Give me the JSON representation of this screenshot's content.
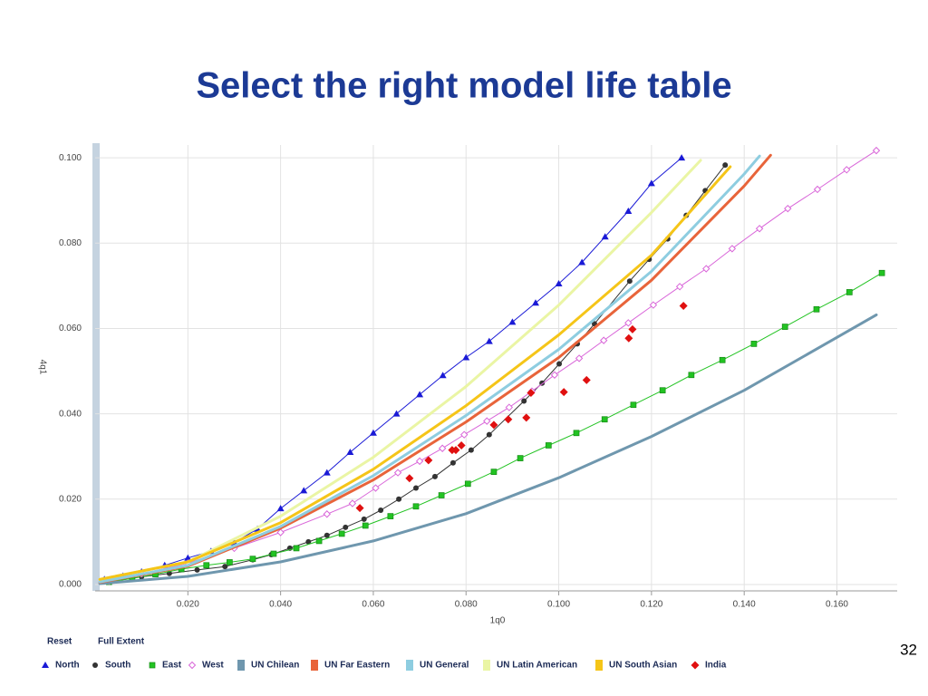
{
  "chart_data": {
    "type": "line",
    "title": "Select the right model life table",
    "x_label": "1q0",
    "y_label": "4q1",
    "buttons": [
      "Reset",
      "Full Extent"
    ],
    "page_number": 32,
    "xlim": [
      0,
      0.173
    ],
    "ylim": [
      -0.0015,
      0.103
    ],
    "xticks": [
      {
        "value": 0.02,
        "label": "0.020"
      },
      {
        "value": 0.04,
        "label": "0.040"
      },
      {
        "value": 0.06,
        "label": "0.060"
      },
      {
        "value": 0.08,
        "label": "0.080"
      },
      {
        "value": 0.1,
        "label": "0.100"
      },
      {
        "value": 0.12,
        "label": "0.120"
      },
      {
        "value": 0.14,
        "label": "0.140"
      },
      {
        "value": 0.16,
        "label": "0.160"
      }
    ],
    "yticks": [
      {
        "value": 0,
        "label": "0.000"
      },
      {
        "value": 0.02,
        "label": "0.020"
      },
      {
        "value": 0.04,
        "label": "0.040"
      },
      {
        "value": 0.06,
        "label": "0.060"
      },
      {
        "value": 0.08,
        "label": "0.080"
      },
      {
        "value": 0.1,
        "label": "0.100"
      }
    ],
    "grid": true,
    "series": [
      {
        "name": "North",
        "color": "#1a1ad6",
        "marker": "triangle",
        "line": true,
        "x": [
          0.002,
          0.006,
          0.01,
          0.015,
          0.02,
          0.025,
          0.03,
          0.035,
          0.04,
          0.045,
          0.05,
          0.055,
          0.06,
          0.065,
          0.07,
          0.075,
          0.08,
          0.085,
          0.09,
          0.095,
          0.1,
          0.105,
          0.11,
          0.115,
          0.12,
          0.1265
        ],
        "values": [
          0.0012,
          0.002,
          0.003,
          0.0045,
          0.0062,
          0.0078,
          0.0098,
          0.013,
          0.0178,
          0.022,
          0.0262,
          0.031,
          0.0355,
          0.04,
          0.0445,
          0.049,
          0.0532,
          0.057,
          0.0615,
          0.066,
          0.0705,
          0.0755,
          0.0815,
          0.0875,
          0.094,
          0.1
        ]
      },
      {
        "name": "South",
        "color": "#333333",
        "marker": "circle",
        "line": true,
        "x": [
          0.004,
          0.01,
          0.016,
          0.022,
          0.028,
          0.034,
          0.038,
          0.042,
          0.046,
          0.05,
          0.054,
          0.058,
          0.0616,
          0.0655,
          0.0692,
          0.0733,
          0.0772,
          0.0811,
          0.085,
          0.0925,
          0.0964,
          0.1001,
          0.104,
          0.1077,
          0.1153,
          0.1195,
          0.1235,
          0.1275,
          0.1316,
          0.1359
        ],
        "values": [
          0.0008,
          0.0018,
          0.0026,
          0.0034,
          0.0042,
          0.0058,
          0.007,
          0.0085,
          0.01,
          0.0115,
          0.0134,
          0.0153,
          0.0174,
          0.02,
          0.0226,
          0.0253,
          0.0285,
          0.0315,
          0.0351,
          0.043,
          0.0472,
          0.0517,
          0.0564,
          0.0611,
          0.0711,
          0.0762,
          0.081,
          0.0865,
          0.0923,
          0.0983
        ]
      },
      {
        "name": "East",
        "color": "#22c322",
        "marker": "square",
        "line": true,
        "x": [
          0.003,
          0.008,
          0.013,
          0.0186,
          0.024,
          0.029,
          0.034,
          0.0385,
          0.0434,
          0.0483,
          0.0532,
          0.0583,
          0.0637,
          0.0692,
          0.0747,
          0.0804,
          0.086,
          0.0917,
          0.0978,
          0.1038,
          0.1099,
          0.1161,
          0.1224,
          0.1286,
          0.1353,
          0.1421,
          0.1488,
          0.1556,
          0.1627,
          0.1697
        ],
        "values": [
          0.0006,
          0.0014,
          0.0024,
          0.0036,
          0.0045,
          0.0052,
          0.006,
          0.0072,
          0.0085,
          0.0102,
          0.0119,
          0.0138,
          0.016,
          0.0183,
          0.0209,
          0.0236,
          0.0264,
          0.0296,
          0.0326,
          0.0355,
          0.0387,
          0.0421,
          0.0455,
          0.0491,
          0.0526,
          0.0564,
          0.0604,
          0.0645,
          0.0685,
          0.073
        ]
      },
      {
        "name": "West",
        "color": "#d966d9",
        "marker": "diamond-open",
        "line": true,
        "x": [
          0.003,
          0.01,
          0.02,
          0.03,
          0.04,
          0.05,
          0.0555,
          0.0605,
          0.0653,
          0.07,
          0.0749,
          0.0796,
          0.0845,
          0.0893,
          0.0942,
          0.0991,
          0.1044,
          0.1097,
          0.115,
          0.1204,
          0.1261,
          0.1318,
          0.1374,
          0.1433,
          0.1494,
          0.1558,
          0.1621,
          0.1685
        ],
        "values": [
          0.0008,
          0.0025,
          0.005,
          0.0085,
          0.0122,
          0.0165,
          0.019,
          0.0226,
          0.0262,
          0.0289,
          0.0319,
          0.0351,
          0.0383,
          0.0415,
          0.0453,
          0.0491,
          0.053,
          0.0572,
          0.0613,
          0.0655,
          0.0698,
          0.074,
          0.0787,
          0.0834,
          0.0881,
          0.0926,
          0.0972,
          0.1017
        ]
      },
      {
        "name": "UN Chilean",
        "color": "#6f97ae",
        "marker": "none",
        "line": true,
        "x": [
          0.001,
          0.02,
          0.04,
          0.06,
          0.08,
          0.1,
          0.12,
          0.14,
          0.16,
          0.1685
        ],
        "values": [
          0.0002,
          0.0019,
          0.0053,
          0.0102,
          0.0166,
          0.025,
          0.0347,
          0.0455,
          0.0579,
          0.0632
        ]
      },
      {
        "name": "UN Far Eastern",
        "color": "#e8643a",
        "marker": "none",
        "line": true,
        "x": [
          0.001,
          0.02,
          0.04,
          0.06,
          0.08,
          0.1,
          0.12,
          0.14,
          0.1457
        ],
        "values": [
          0.0005,
          0.0043,
          0.0132,
          0.0245,
          0.0381,
          0.0532,
          0.0713,
          0.0934,
          0.1006
        ]
      },
      {
        "name": "UN General",
        "color": "#8ecde0",
        "marker": "none",
        "line": true,
        "x": [
          0.001,
          0.02,
          0.04,
          0.06,
          0.08,
          0.1,
          0.12,
          0.14,
          0.1433
        ],
        "values": [
          0.0006,
          0.0045,
          0.0136,
          0.0255,
          0.0396,
          0.0551,
          0.0734,
          0.0962,
          0.1004
        ]
      },
      {
        "name": "UN Latin American",
        "color": "#eaf5a4",
        "marker": "none",
        "line": true,
        "x": [
          0.001,
          0.02,
          0.04,
          0.06,
          0.08,
          0.1,
          0.12,
          0.1306
        ],
        "values": [
          0.0012,
          0.0053,
          0.016,
          0.0298,
          0.0464,
          0.0655,
          0.0872,
          0.0994
        ]
      },
      {
        "name": "UN South Asian",
        "color": "#f5c518",
        "marker": "none",
        "line": true,
        "x": [
          0.001,
          0.02,
          0.04,
          0.06,
          0.08,
          0.1,
          0.12,
          0.137
        ],
        "values": [
          0.0012,
          0.0053,
          0.0145,
          0.027,
          0.0419,
          0.0585,
          0.0772,
          0.0979
        ]
      },
      {
        "name": "India",
        "color": "#e01010",
        "marker": "diamond",
        "line": false,
        "x": [
          0.0571,
          0.0678,
          0.0719,
          0.077,
          0.0778,
          0.079,
          0.086,
          0.0891,
          0.093,
          0.094,
          0.1011,
          0.106,
          0.1151,
          0.1159,
          0.1269
        ],
        "values": [
          0.0179,
          0.0249,
          0.0291,
          0.0315,
          0.0315,
          0.0326,
          0.0374,
          0.0387,
          0.0391,
          0.0449,
          0.0451,
          0.0479,
          0.0577,
          0.0598,
          0.0653
        ]
      }
    ]
  }
}
